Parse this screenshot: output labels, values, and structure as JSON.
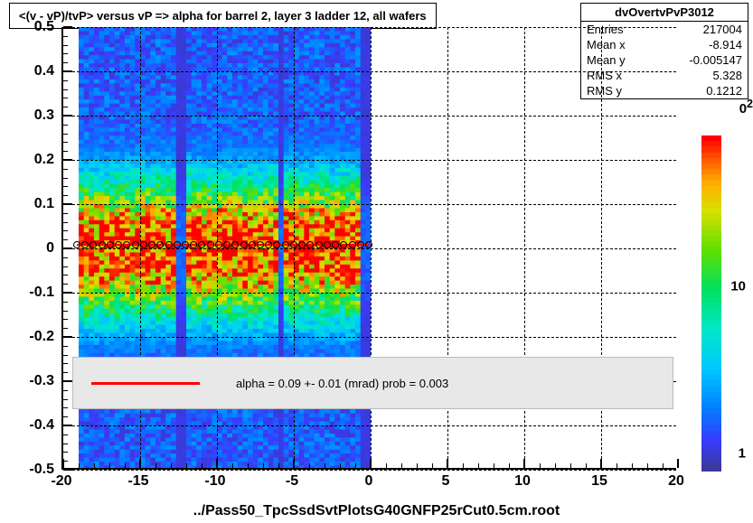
{
  "title": "<(v - vP)/tvP> versus   vP => alpha for barrel 2, layer 3 ladder 12, all wafers",
  "stats": {
    "title": "dvOvertvPvP3012",
    "rows": [
      {
        "label": "Entries",
        "value": "217004"
      },
      {
        "label": "Mean x",
        "value": "-8.914"
      },
      {
        "label": "Mean y",
        "value": "-0.005147"
      },
      {
        "label": "RMS x",
        "value": "5.328"
      },
      {
        "label": "RMS y",
        "value": "0.1212"
      }
    ]
  },
  "chart": {
    "type": "heatmap",
    "xlim": [
      -20,
      20
    ],
    "ylim": [
      -0.5,
      0.5
    ],
    "xtick_step": 5,
    "ytick_step": 0.1,
    "data_xrange": [
      -19,
      0
    ],
    "grid_color": "#000000",
    "background_color": "#ffffff",
    "title_fontsize": 13,
    "label_fontsize": 16,
    "colorscale": [
      {
        "pos": 0.0,
        "color": "#3a3a9f"
      },
      {
        "pos": 0.08,
        "color": "#3a3aff"
      },
      {
        "pos": 0.18,
        "color": "#0080ff"
      },
      {
        "pos": 0.3,
        "color": "#00c8ff"
      },
      {
        "pos": 0.42,
        "color": "#00e8c8"
      },
      {
        "pos": 0.54,
        "color": "#00e060"
      },
      {
        "pos": 0.66,
        "color": "#60e000"
      },
      {
        "pos": 0.78,
        "color": "#d8e000"
      },
      {
        "pos": 0.86,
        "color": "#ffb000"
      },
      {
        "pos": 0.93,
        "color": "#ff6000"
      },
      {
        "pos": 1.0,
        "color": "#ff0000"
      }
    ],
    "z_log": true,
    "z_ticks": [
      {
        "value": "1",
        "pos": 0.05
      },
      {
        "value": "10",
        "pos": 0.55
      }
    ],
    "z_exp_label": "2",
    "z_exp_prefix": "0"
  },
  "fit": {
    "legend_text": "alpha =    0.09 +-  0.01 (mrad) prob = 0.003",
    "line_color": "#ff0000",
    "marker_y": 0.008,
    "marker_x_start": -19,
    "marker_x_end": 0,
    "marker_count": 36
  },
  "xlabel": "../Pass50_TpcSsdSvtPlotsG40GNFP25rCut0.5cm.root",
  "xtick_labels": [
    "-20",
    "-15",
    "-10",
    "-5",
    "0",
    "5",
    "10",
    "15",
    "20"
  ],
  "ytick_labels": [
    "-0.5",
    "-0.4",
    "-0.3",
    "-0.2",
    "-0.1",
    "0",
    "0.1",
    "0.2",
    "0.3",
    "0.4",
    "0.5"
  ]
}
